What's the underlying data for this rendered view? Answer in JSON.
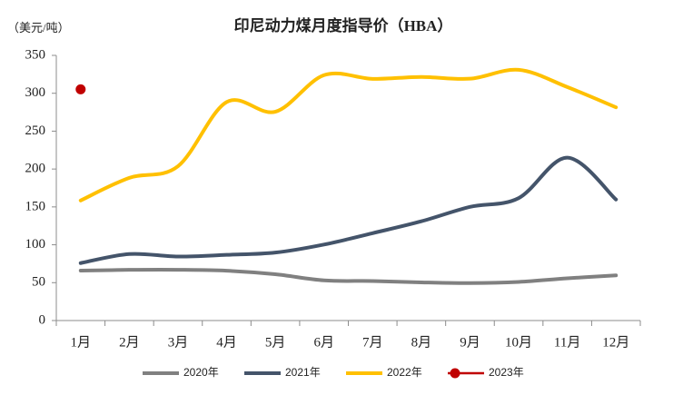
{
  "chart_data": {
    "type": "line",
    "title": "印尼动力煤月度指导价（HBA）",
    "y_label": "（美元/吨）",
    "categories": [
      "1月",
      "2月",
      "3月",
      "4月",
      "5月",
      "6月",
      "7月",
      "8月",
      "9月",
      "10月",
      "11月",
      "12月"
    ],
    "series": [
      {
        "name": "2020年",
        "color": "#808080",
        "values": [
          65.9,
          66.9,
          67.0,
          65.8,
          61.1,
          52.98,
          52.16,
          50.34,
          49.42,
          51.0,
          55.7,
          59.65
        ]
      },
      {
        "name": "2021年",
        "color": "#44546a",
        "values": [
          75.84,
          87.79,
          84.47,
          86.68,
          89.74,
          100.33,
          115.35,
          130.99,
          150.03,
          161.63,
          215.01,
          159.79
        ]
      },
      {
        "name": "2022年",
        "color": "#ffc000",
        "values": [
          158.5,
          188.38,
          203.69,
          288.4,
          275.64,
          323.91,
          319.0,
          321.59,
          319.22,
          330.97,
          308.2,
          281.48
        ]
      },
      {
        "name": "2023年",
        "color": "#c00000",
        "marker": true,
        "values": [
          305.2,
          null,
          null,
          null,
          null,
          null,
          null,
          null,
          null,
          null,
          null,
          null
        ]
      }
    ],
    "ylim": [
      0,
      350
    ],
    "yticks": [
      0,
      50,
      100,
      150,
      200,
      250,
      300,
      350
    ],
    "smooth": true,
    "grid": false,
    "legend": "bottom"
  }
}
